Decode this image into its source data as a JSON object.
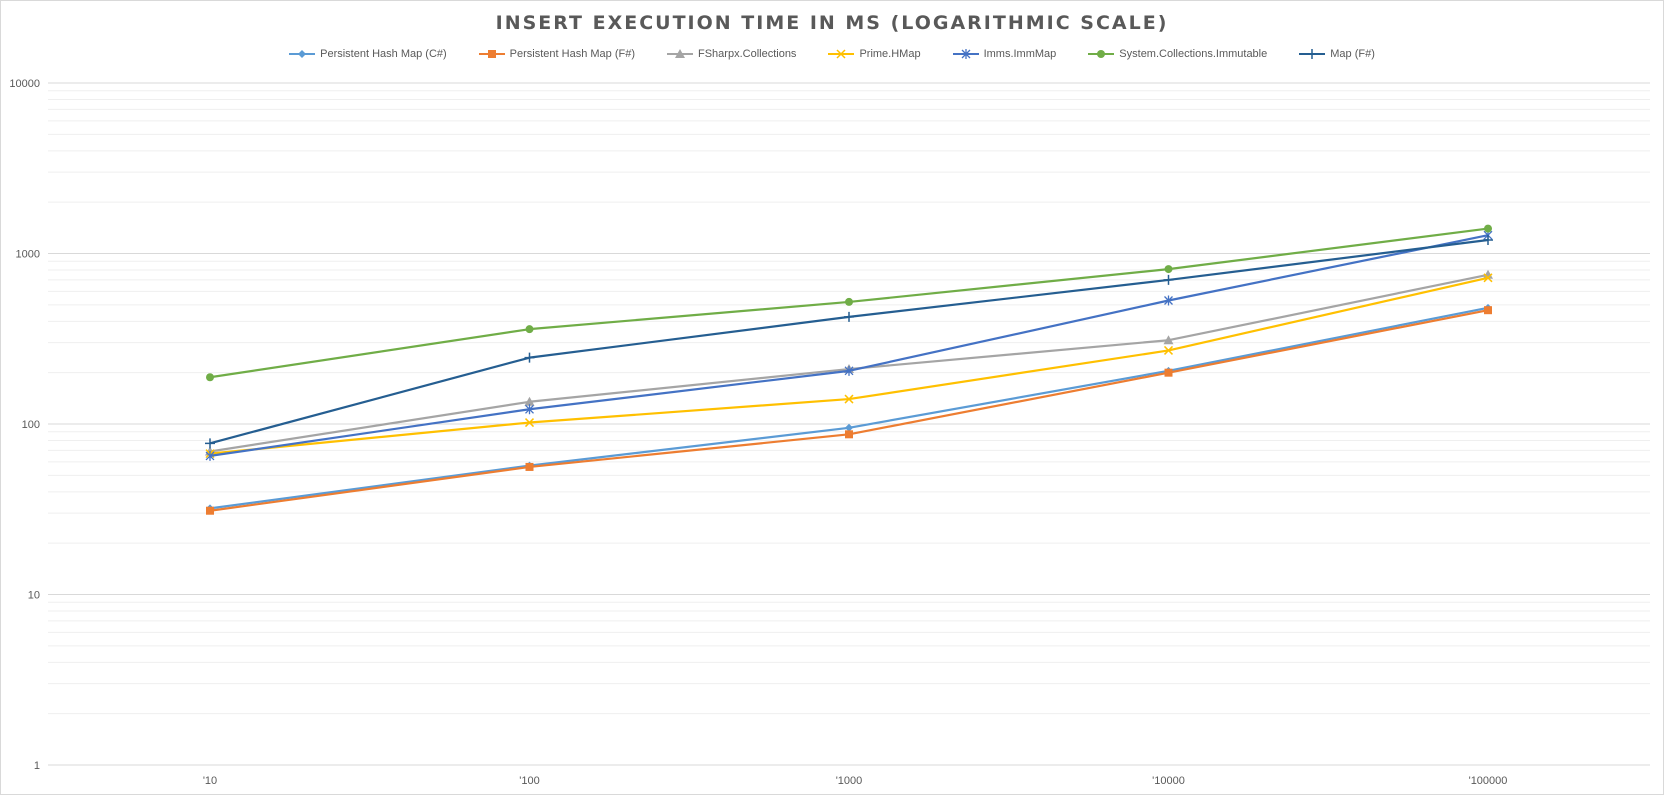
{
  "chart_data": {
    "type": "line",
    "title": "INSERT EXECUTION TIME IN MS (LOGARITHMIC SCALE)",
    "xlabel": "",
    "ylabel": "",
    "y_scale": "log",
    "ylim": [
      1,
      10000
    ],
    "y_ticks": [
      "1",
      "10",
      "100",
      "1000",
      "10000"
    ],
    "grid": "major and minor horizontal",
    "legend_position": "top",
    "categories": [
      "'10",
      "'100",
      "'1000",
      "'10000",
      "'100000"
    ],
    "series": [
      {
        "name": "Persistent Hash Map (C#)",
        "color": "#5B9BD5",
        "marker": "diamond",
        "values": [
          32,
          57,
          95,
          205,
          480
        ]
      },
      {
        "name": "Persistent Hash Map (F#)",
        "color": "#ED7D31",
        "marker": "square",
        "values": [
          31,
          56,
          87,
          200,
          465
        ]
      },
      {
        "name": "FSharpx.Collections",
        "color": "#A5A5A5",
        "marker": "triangle",
        "values": [
          69,
          135,
          210,
          310,
          750
        ]
      },
      {
        "name": "Prime.HMap",
        "color": "#FFC000",
        "marker": "x",
        "values": [
          67,
          102,
          140,
          270,
          720
        ]
      },
      {
        "name": "Imms.ImmMap",
        "color": "#4472C4",
        "marker": "star",
        "values": [
          65,
          122,
          205,
          530,
          1280
        ]
      },
      {
        "name": "System.Collections.Immutable",
        "color": "#70AD47",
        "marker": "circle",
        "values": [
          188,
          360,
          520,
          810,
          1400
        ]
      },
      {
        "name": "Map (F#)",
        "color": "#255E91",
        "marker": "plus",
        "values": [
          77,
          245,
          425,
          700,
          1200
        ]
      }
    ]
  }
}
